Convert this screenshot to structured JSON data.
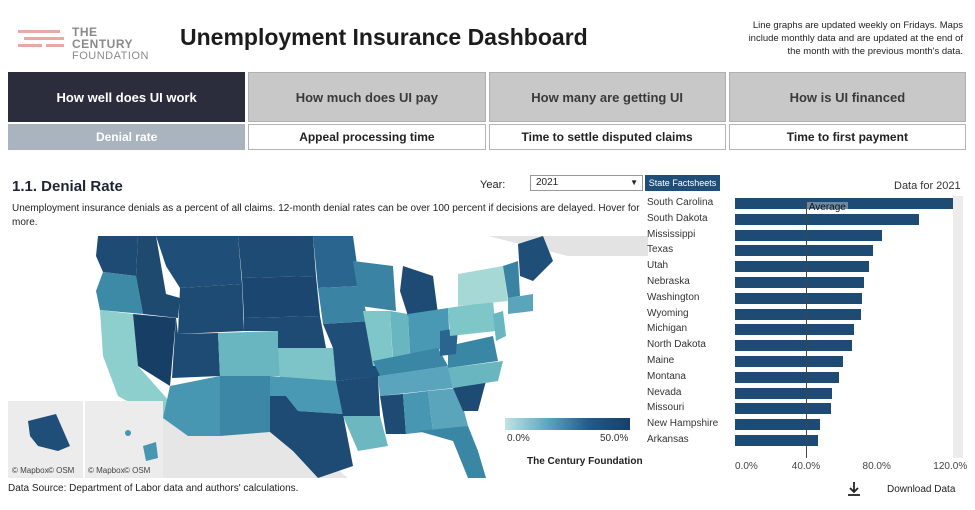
{
  "header": {
    "logo_line1": "THE CENTURY",
    "logo_line2": "FOUNDATION",
    "title": "Unemployment Insurance Dashboard",
    "notice": "Line graphs are updated weekly on Fridays. Maps include monthly data and are updated at the end of the month with the previous month's data."
  },
  "main_tabs": [
    {
      "label": "How well does UI work",
      "active": true
    },
    {
      "label": "How much does UI pay",
      "active": false
    },
    {
      "label": "How many are getting UI",
      "active": false
    },
    {
      "label": "How is UI financed",
      "active": false
    }
  ],
  "sub_tabs": [
    {
      "label": "Denial rate",
      "active": true
    },
    {
      "label": "Appeal processing time",
      "active": false
    },
    {
      "label": "Time to settle disputed claims",
      "active": false
    },
    {
      "label": "Time to first payment",
      "active": false
    }
  ],
  "section": {
    "title": "1.1. Denial Rate",
    "description": "Unemployment insurance denials as a percent of all claims. 12-month denial rates can be over 100 percent if decisions are delayed. Hover for more.",
    "year_label": "Year:",
    "year_value": "2021",
    "factsheet_button": "State Factsheets",
    "data_for": "Data for 2021"
  },
  "map": {
    "attribution_1": "© Mapbox",
    "attribution_2": "© OSM",
    "attribution_3": "© Mapbox",
    "attribution_4": "© OSM",
    "legend_min": "0.0%",
    "legend_max": "50.0%",
    "credit": "The Century Foundation",
    "colors": {
      "low": "#bfe4e2",
      "mid": "#5fa7c2",
      "high": "#173f66"
    }
  },
  "chart_data": {
    "type": "bar",
    "orientation": "horizontal",
    "title": "",
    "categories": [
      "South Carolina",
      "South Dakota",
      "Mississippi",
      "Texas",
      "Utah",
      "Nebraska",
      "Washington",
      "Wyoming",
      "Michigan",
      "North Dakota",
      "Maine",
      "Montana",
      "Nevada",
      "Missouri",
      "New Hampshire",
      "Arkansas"
    ],
    "values": [
      124,
      104,
      83,
      78,
      76,
      73,
      72,
      71,
      67,
      66,
      61,
      59,
      55,
      54,
      48,
      47
    ],
    "unit": "%",
    "xlim": [
      0,
      130
    ],
    "x_ticks": [
      "0.0%",
      "40.0%",
      "80.0%",
      "120.0%"
    ],
    "average_label": "Average",
    "average_value": 40,
    "bar_color": "#1d4b73"
  },
  "footer": {
    "source": "Data Source: Department of Labor data and authors' calculations.",
    "download_label": "Download Data"
  }
}
